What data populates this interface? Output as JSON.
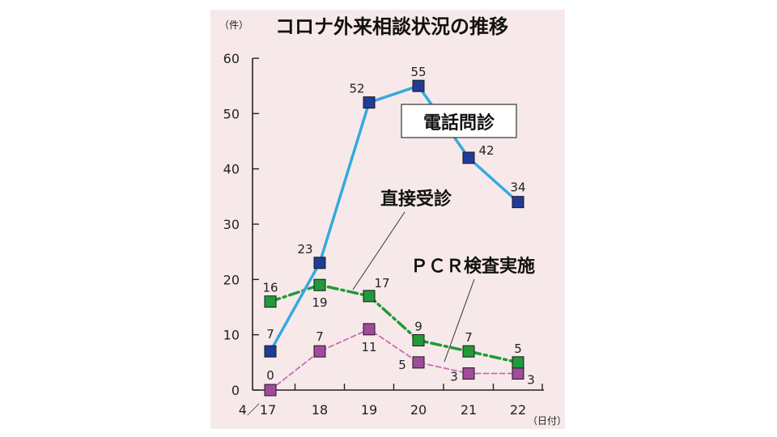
{
  "chart_data": {
    "type": "line",
    "title": "コロナ外来相談状況の推移",
    "y_unit": "（件）",
    "x_unit": "（日付）",
    "categories": [
      "4／17",
      "18",
      "19",
      "20",
      "21",
      "22"
    ],
    "ylim": [
      0,
      60
    ],
    "yticks": [
      0,
      10,
      20,
      30,
      40,
      50,
      60
    ],
    "series": [
      {
        "name": "電話問診",
        "values": [
          7,
          23,
          52,
          55,
          42,
          34
        ],
        "color": "#35a9e1",
        "marker": "#1f3c96",
        "style": "solid",
        "boxed_label": true
      },
      {
        "name": "直接受診",
        "values": [
          16,
          19,
          17,
          9,
          7,
          5
        ],
        "color": "#22993a",
        "marker": "#22993a",
        "style": "dashdot",
        "boxed_label": false
      },
      {
        "name": "ＰＣＲ検査実施",
        "values": [
          0,
          7,
          11,
          5,
          3,
          3
        ],
        "color": "#c76bb6",
        "marker": "#a04c9a",
        "style": "dashed",
        "boxed_label": false
      }
    ],
    "grid": false,
    "legend": "inline annotations"
  }
}
